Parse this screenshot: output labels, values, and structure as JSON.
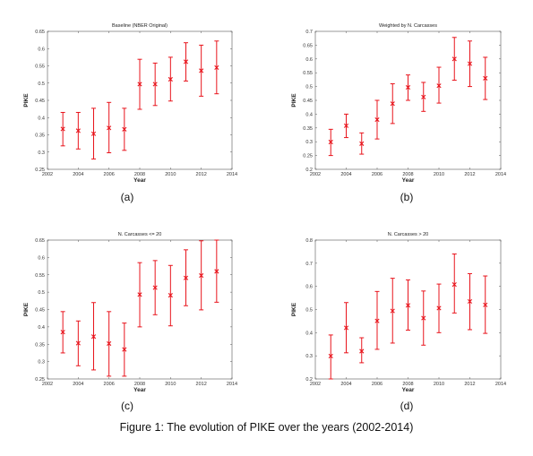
{
  "caption": "Figure 1: The evolution of PIKE over the years (2002-2014)",
  "chart_data": [
    {
      "type": "scatter",
      "panel_label": "(a)",
      "title": "Baseline (NBER Original)",
      "xlabel": "Year",
      "ylabel": "PIKE",
      "xlim": [
        2002,
        2014
      ],
      "ylim": [
        0.25,
        0.65
      ],
      "x_ticks": [
        "2002",
        "2004",
        "2006",
        "2008",
        "2010",
        "2012",
        "2014"
      ],
      "y_ticks": [
        "0.25",
        "0.3",
        "0.35",
        "0.4",
        "0.45",
        "0.5",
        "0.55",
        "0.6",
        "0.65"
      ],
      "colors": {
        "series": "#e8141c"
      },
      "x": [
        2003,
        2004,
        2005,
        2006,
        2007,
        2008,
        2009,
        2010,
        2011,
        2012,
        2013
      ],
      "y": [
        0.367,
        0.362,
        0.353,
        0.37,
        0.366,
        0.497,
        0.497,
        0.511,
        0.562,
        0.536,
        0.545
      ],
      "y_lower": [
        0.318,
        0.309,
        0.28,
        0.298,
        0.305,
        0.424,
        0.435,
        0.448,
        0.506,
        0.462,
        0.469
      ],
      "y_upper": [
        0.415,
        0.415,
        0.427,
        0.444,
        0.427,
        0.569,
        0.558,
        0.575,
        0.617,
        0.61,
        0.622
      ]
    },
    {
      "type": "scatter",
      "panel_label": "(b)",
      "title": "Weighted by N. Carcasses",
      "xlabel": "Year",
      "ylabel": "PIKE",
      "xlim": [
        2002,
        2014
      ],
      "ylim": [
        0.2,
        0.7
      ],
      "x_ticks": [
        "2002",
        "2004",
        "2006",
        "2008",
        "2010",
        "2012",
        "2014"
      ],
      "y_ticks": [
        "0.2",
        "0.25",
        "0.3",
        "0.35",
        "0.4",
        "0.45",
        "0.5",
        "0.55",
        "0.6",
        "0.65",
        "0.7"
      ],
      "colors": {
        "series": "#e8141c"
      },
      "x": [
        2003,
        2004,
        2005,
        2006,
        2007,
        2008,
        2009,
        2010,
        2011,
        2012,
        2013
      ],
      "y": [
        0.299,
        0.358,
        0.293,
        0.38,
        0.438,
        0.497,
        0.462,
        0.503,
        0.6,
        0.583,
        0.53
      ],
      "y_lower": [
        0.25,
        0.315,
        0.255,
        0.31,
        0.366,
        0.45,
        0.41,
        0.44,
        0.523,
        0.5,
        0.453
      ],
      "y_upper": [
        0.345,
        0.4,
        0.332,
        0.45,
        0.51,
        0.542,
        0.515,
        0.57,
        0.678,
        0.665,
        0.606
      ]
    },
    {
      "type": "scatter",
      "panel_label": "(c)",
      "title": "N. Carcasses <= 20",
      "xlabel": "Year",
      "ylabel": "PIKE",
      "xlim": [
        2002,
        2014
      ],
      "ylim": [
        0.25,
        0.65
      ],
      "x_ticks": [
        "2002",
        "2004",
        "2006",
        "2008",
        "2010",
        "2012",
        "2014"
      ],
      "y_ticks": [
        "0.25",
        "0.3",
        "0.35",
        "0.4",
        "0.45",
        "0.5",
        "0.55",
        "0.6",
        "0.65"
      ],
      "colors": {
        "series": "#e8141c"
      },
      "x": [
        2003,
        2004,
        2005,
        2006,
        2007,
        2008,
        2009,
        2010,
        2011,
        2012,
        2013
      ],
      "y": [
        0.385,
        0.353,
        0.372,
        0.352,
        0.335,
        0.493,
        0.513,
        0.491,
        0.541,
        0.548,
        0.56
      ],
      "y_lower": [
        0.325,
        0.288,
        0.276,
        0.258,
        0.258,
        0.4,
        0.435,
        0.403,
        0.461,
        0.449,
        0.471
      ],
      "y_upper": [
        0.444,
        0.417,
        0.47,
        0.444,
        0.411,
        0.585,
        0.591,
        0.577,
        0.622,
        0.648,
        0.65
      ]
    },
    {
      "type": "scatter",
      "panel_label": "(d)",
      "title": "N. Carcasses > 20",
      "xlabel": "Year",
      "ylabel": "PIKE",
      "xlim": [
        2002,
        2014
      ],
      "ylim": [
        0.2,
        0.8
      ],
      "x_ticks": [
        "2002",
        "2004",
        "2006",
        "2008",
        "2010",
        "2012",
        "2014"
      ],
      "y_ticks": [
        "0.2",
        "0.3",
        "0.4",
        "0.5",
        "0.6",
        "0.7",
        "0.8"
      ],
      "colors": {
        "series": "#e8141c"
      },
      "x": [
        2003,
        2004,
        2005,
        2006,
        2007,
        2008,
        2009,
        2010,
        2011,
        2012,
        2013
      ],
      "y": [
        0.299,
        0.421,
        0.32,
        0.451,
        0.494,
        0.518,
        0.463,
        0.506,
        0.608,
        0.535,
        0.52
      ],
      "y_lower": [
        0.2,
        0.313,
        0.27,
        0.328,
        0.355,
        0.411,
        0.346,
        0.4,
        0.485,
        0.413,
        0.397
      ],
      "y_upper": [
        0.39,
        0.53,
        0.378,
        0.578,
        0.635,
        0.628,
        0.58,
        0.61,
        0.74,
        0.655,
        0.645
      ]
    }
  ]
}
